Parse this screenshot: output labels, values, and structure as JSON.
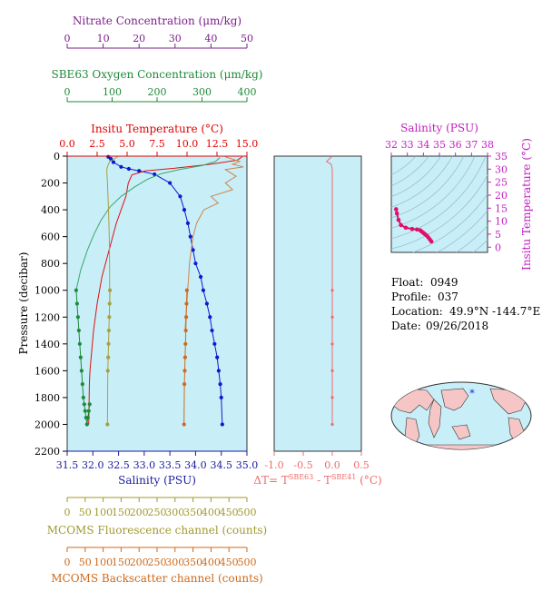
{
  "chart_data": [
    {
      "type": "line",
      "name": "profile",
      "ylabel": "Pressure (decibar)",
      "ylim": [
        2200,
        0
      ],
      "yticks": [
        "0",
        "200",
        "400",
        "600",
        "800",
        "1000",
        "1200",
        "1400",
        "1600",
        "1800",
        "2000",
        "2200"
      ],
      "axes": {
        "nitrate": {
          "label": "Nitrate Concentration (μm/kg)",
          "range": [
            0,
            50
          ],
          "ticks": [
            "0",
            "10",
            "20",
            "30",
            "40",
            "50"
          ],
          "color": "#7a1f8a"
        },
        "oxygen": {
          "label": "SBE63 Oxygen Concentration (μm/kg)",
          "range": [
            0,
            400
          ],
          "ticks": [
            "0",
            "100",
            "200",
            "300",
            "400"
          ],
          "color": "#1f8a3a"
        },
        "temperature": {
          "label": "Insitu Temperature (°C)",
          "range": [
            0,
            15
          ],
          "ticks": [
            "0.0",
            "2.5",
            "5.0",
            "7.5",
            "10.0",
            "12.5",
            "15.0"
          ],
          "color": "#e00000"
        },
        "salinity": {
          "label": "Salinity (PSU)",
          "range": [
            31.5,
            35.0
          ],
          "ticks": [
            "31.5",
            "32.0",
            "32.5",
            "33.0",
            "33.5",
            "34.0",
            "34.5",
            "35.0"
          ],
          "color": "#1a1aa0"
        },
        "fluorescence": {
          "label": "MCOMS Fluorescence channel (counts)",
          "range": [
            0,
            500
          ],
          "ticks": [
            "0",
            "50",
            "100",
            "150",
            "200",
            "250",
            "300",
            "350",
            "400",
            "450",
            "500"
          ],
          "color": "#a09a30"
        },
        "backscatter": {
          "label": "MCOMS Backscatter channel (counts)",
          "range": [
            0,
            500
          ],
          "ticks": [
            "0",
            "50",
            "100",
            "150",
            "200",
            "250",
            "300",
            "350",
            "400",
            "450",
            "500"
          ],
          "color": "#d06a1a"
        }
      },
      "series": [
        {
          "name": "salinity",
          "axis": "salinity",
          "color": "#0a1ad0",
          "markers": true,
          "x": [
            32.3,
            32.35,
            32.4,
            32.55,
            32.7,
            32.9,
            33.2,
            33.5,
            33.7,
            33.78,
            33.85,
            33.9,
            33.95,
            34.0,
            34.1,
            34.15,
            34.22,
            34.28,
            34.32,
            34.37,
            34.42,
            34.45,
            34.48,
            34.5,
            34.52
          ],
          "y": [
            5,
            20,
            45,
            80,
            95,
            110,
            135,
            200,
            300,
            400,
            500,
            600,
            700,
            800,
            900,
            1000,
            1100,
            1200,
            1300,
            1400,
            1500,
            1600,
            1700,
            1800,
            2000
          ]
        },
        {
          "name": "temperature",
          "axis": "temperature",
          "color": "#e01010",
          "markers": false,
          "x": [
            14.6,
            14.2,
            12.0,
            9.0,
            6.5,
            5.4,
            5.1,
            4.9,
            4.5,
            4.1,
            3.8,
            3.5,
            3.2,
            2.9,
            2.7,
            2.5,
            2.35,
            2.2,
            2.1,
            2.0,
            1.9,
            1.85,
            1.8
          ],
          "y": [
            5,
            30,
            60,
            90,
            110,
            140,
            200,
            300,
            400,
            500,
            600,
            700,
            800,
            900,
            1000,
            1100,
            1200,
            1300,
            1400,
            1500,
            1600,
            1700,
            2000
          ]
        },
        {
          "name": "oxygen",
          "axis": "oxygen",
          "color": "#3aa86a",
          "markers": false,
          "x": [
            340,
            330,
            300,
            250,
            210,
            180,
            150,
            120,
            95,
            75,
            60,
            45,
            30,
            20
          ],
          "y": [
            10,
            40,
            70,
            100,
            130,
            170,
            230,
            300,
            380,
            480,
            580,
            700,
            850,
            1000
          ]
        },
        {
          "name": "oxygen-deep",
          "axis": "oxygen",
          "color": "#1f8a3a",
          "markers": true,
          "x": [
            20,
            22,
            24,
            26,
            28,
            30,
            32,
            34,
            36,
            38,
            40,
            42,
            44,
            46,
            48,
            50
          ],
          "y": [
            1000,
            1100,
            1200,
            1300,
            1400,
            1500,
            1600,
            1700,
            1800,
            1850,
            1900,
            1950,
            2000,
            1950,
            1900,
            1850
          ]
        },
        {
          "name": "fluorescence",
          "axis": "fluorescence",
          "color": "#a8a040",
          "markers": false,
          "x": [
            140,
            118,
            112,
            110,
            112,
            115,
            117,
            118,
            118,
            119
          ],
          "y": [
            5,
            40,
            80,
            100,
            200,
            400,
            600,
            800,
            1000,
            1100
          ]
        },
        {
          "name": "fluorescence-deep",
          "axis": "fluorescence",
          "color": "#a8a040",
          "markers": true,
          "x": [
            119,
            118,
            117,
            116,
            115,
            114,
            113,
            112
          ],
          "y": [
            1000,
            1100,
            1200,
            1300,
            1400,
            1500,
            1600,
            2000
          ]
        },
        {
          "name": "backscatter",
          "axis": "backscatter",
          "color": "#d0854a",
          "markers": false,
          "x": [
            440,
            480,
            460,
            490,
            440,
            470,
            440,
            460,
            400,
            420,
            380,
            360,
            350,
            345,
            340,
            338,
            335,
            333,
            330,
            328
          ],
          "y": [
            5,
            40,
            60,
            80,
            100,
            150,
            200,
            250,
            300,
            350,
            400,
            500,
            600,
            700,
            800,
            900,
            1000,
            1100,
            1200,
            1300
          ]
        },
        {
          "name": "backscatter-deep",
          "axis": "backscatter",
          "color": "#d06a1a",
          "markers": true,
          "x": [
            333,
            332,
            331,
            330,
            329,
            328,
            327,
            326,
            325
          ],
          "y": [
            1000,
            1100,
            1200,
            1300,
            1400,
            1500,
            1600,
            1700,
            2000
          ]
        }
      ]
    },
    {
      "type": "line",
      "name": "delta-t",
      "xlabel": "ΔT= T^SBE63 - T^SBE41 (°C)",
      "xlabel_parts": {
        "a": "ΔT= T",
        "b": "SBE63",
        "c": " - T",
        "d": "SBE41",
        "e": " (°C)"
      },
      "xlim": [
        -1.0,
        0.5
      ],
      "xticks": [
        "-1.0",
        "-0.5",
        "0.0",
        "0.5"
      ],
      "ylim": [
        2200,
        0
      ],
      "color": "#f06b6b",
      "x": [
        0.0,
        -0.05,
        -0.1,
        -0.02,
        0.0,
        0.0,
        0.0,
        0.0,
        0.0,
        0.0,
        0.0,
        0.0,
        0.0,
        0.0,
        0.0
      ],
      "y": [
        0,
        20,
        40,
        60,
        100,
        200,
        400,
        600,
        800,
        1000,
        1200,
        1400,
        1600,
        1800,
        2000
      ]
    },
    {
      "type": "scatter",
      "name": "ts-diagram",
      "xlabel": "Salinity (PSU)",
      "ylabel": "Insitu Temperature (°C)",
      "xlim": [
        32,
        38
      ],
      "xticks": [
        "32",
        "33",
        "34",
        "35",
        "36",
        "37",
        "38"
      ],
      "ylim": [
        -2,
        35
      ],
      "yticks": [
        "0",
        "5",
        "10",
        "15",
        "20",
        "25",
        "30",
        "35"
      ],
      "color": "#e0106a",
      "x": [
        32.3,
        32.35,
        32.45,
        32.6,
        32.9,
        33.3,
        33.6,
        33.8,
        33.9,
        34.0,
        34.1,
        34.2,
        34.3,
        34.4,
        34.5
      ],
      "y": [
        14.6,
        13.0,
        10.5,
        8.5,
        7.5,
        7.0,
        6.8,
        6.5,
        6.0,
        5.5,
        5.0,
        4.5,
        3.8,
        3.0,
        2.2
      ]
    }
  ],
  "info": {
    "float_label": "Float:",
    "float_value": "0949",
    "profile_label": "Profile:",
    "profile_value": "037",
    "location_label": "Location:",
    "location_value": "49.9°N  -144.7°E",
    "date_label": "Date:",
    "date_value": "09/26/2018"
  },
  "map": {
    "ocean_color": "#c8eef8",
    "land_color": "#f6c6c6",
    "marker": "*"
  }
}
